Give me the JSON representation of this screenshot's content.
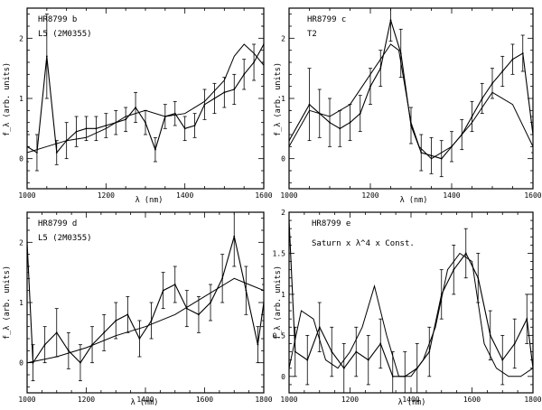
{
  "figure": {
    "panels": [
      {
        "id": "b",
        "title": "HR8799 b",
        "subtitle": "L5 (2M0355)",
        "xlabel": "λ (nm)",
        "ylabel": "f_λ (arb. units)"
      },
      {
        "id": "c",
        "title": "HR8799 c",
        "subtitle": "T2",
        "xlabel": "λ (nm)",
        "ylabel": "f_λ (arb. units)"
      },
      {
        "id": "d",
        "title": "HR8799 d",
        "subtitle": "L5 (2M0355)",
        "xlabel": "λ (nm)",
        "ylabel": "f_λ (arb. units)"
      },
      {
        "id": "e",
        "title": "HR8799 e",
        "subtitle": "Saturn x λ^4 x Const.",
        "xlabel": "λ (nm)",
        "ylabel": "f_λ (arb. units)"
      }
    ]
  },
  "chart_data": [
    {
      "type": "line",
      "title": "HR8799 b",
      "subtitle": "L5 (2M0355)",
      "xlabel": "λ (nm)",
      "ylabel": "f_λ (arb. units)",
      "xlim": [
        1000,
        1600
      ],
      "ylim": [
        -0.5,
        2.5
      ],
      "xticks": [
        1000,
        1200,
        1400,
        1600
      ],
      "yticks": [
        0,
        1,
        2
      ],
      "grid": false,
      "series": [
        {
          "style": "data_with_errorbars",
          "x": [
            1000,
            1025,
            1050,
            1075,
            1100,
            1125,
            1150,
            1175,
            1200,
            1225,
            1250,
            1275,
            1300,
            1325,
            1350,
            1375,
            1400,
            1425,
            1450,
            1475,
            1500,
            1525,
            1550,
            1575,
            1600
          ],
          "y": [
            0.2,
            0.1,
            1.7,
            0.1,
            0.3,
            0.45,
            0.5,
            0.5,
            0.55,
            0.6,
            0.65,
            0.85,
            0.6,
            0.15,
            0.7,
            0.75,
            0.5,
            0.55,
            0.9,
            1.0,
            1.1,
            1.15,
            1.4,
            1.6,
            1.9
          ],
          "err": [
            0.25,
            0.3,
            0.7,
            0.2,
            0.3,
            0.25,
            0.2,
            0.2,
            0.2,
            0.2,
            0.2,
            0.25,
            0.2,
            0.2,
            0.2,
            0.2,
            0.2,
            0.2,
            0.25,
            0.25,
            0.25,
            0.25,
            0.25,
            0.3,
            0.3
          ]
        },
        {
          "style": "model",
          "x": [
            1000,
            1050,
            1100,
            1150,
            1200,
            1250,
            1300,
            1350,
            1400,
            1450,
            1500,
            1525,
            1550,
            1575,
            1600
          ],
          "y": [
            0.1,
            0.2,
            0.3,
            0.35,
            0.5,
            0.7,
            0.8,
            0.7,
            0.75,
            0.95,
            1.3,
            1.7,
            1.9,
            1.75,
            1.55
          ]
        }
      ]
    },
    {
      "type": "line",
      "title": "HR8799 c",
      "subtitle": "T2",
      "xlabel": "λ (nm)",
      "ylabel": "f_λ (arb. units)",
      "xlim": [
        1000,
        1600
      ],
      "ylim": [
        -0.5,
        2.5
      ],
      "xticks": [
        1000,
        1200,
        1400,
        1600
      ],
      "yticks": [
        0,
        1,
        2
      ],
      "grid": false,
      "series": [
        {
          "style": "data_with_errorbars",
          "x": [
            1000,
            1050,
            1075,
            1100,
            1125,
            1150,
            1175,
            1200,
            1225,
            1250,
            1275,
            1300,
            1325,
            1350,
            1375,
            1400,
            1425,
            1450,
            1475,
            1500,
            1525,
            1550,
            1575,
            1600
          ],
          "y": [
            0.3,
            0.9,
            0.75,
            0.6,
            0.5,
            0.6,
            0.75,
            1.2,
            1.5,
            2.3,
            1.75,
            0.55,
            0.1,
            0.05,
            0.0,
            0.2,
            0.4,
            0.7,
            1.0,
            1.25,
            1.45,
            1.65,
            1.75,
            0.4
          ],
          "err": [
            0.5,
            0.6,
            0.4,
            0.4,
            0.3,
            0.3,
            0.3,
            0.3,
            0.3,
            0.35,
            0.4,
            0.3,
            0.3,
            0.3,
            0.3,
            0.25,
            0.25,
            0.25,
            0.25,
            0.25,
            0.25,
            0.25,
            0.3,
            0.3
          ]
        },
        {
          "style": "model",
          "x": [
            1000,
            1050,
            1100,
            1150,
            1200,
            1250,
            1270,
            1300,
            1320,
            1350,
            1400,
            1450,
            1500,
            1550,
            1600
          ],
          "y": [
            0.2,
            0.8,
            0.7,
            0.9,
            1.4,
            1.9,
            1.8,
            0.6,
            0.2,
            0.0,
            0.2,
            0.6,
            1.1,
            0.9,
            0.2
          ]
        }
      ]
    },
    {
      "type": "line",
      "title": "HR8799 d",
      "subtitle": "L5 (2M0355)",
      "xlabel": "λ (nm)",
      "ylabel": "f_λ (arb. units)",
      "xlim": [
        1000,
        1800
      ],
      "ylim": [
        -0.5,
        2.5
      ],
      "xticks": [
        1000,
        1200,
        1400,
        1600,
        1800
      ],
      "yticks": [
        0,
        1,
        2
      ],
      "grid": false,
      "series": [
        {
          "style": "data_with_errorbars",
          "x": [
            1000,
            1020,
            1060,
            1100,
            1140,
            1180,
            1220,
            1260,
            1300,
            1340,
            1380,
            1420,
            1460,
            1500,
            1540,
            1580,
            1620,
            1660,
            1700,
            1740,
            1780,
            1800
          ],
          "y": [
            2.0,
            0.0,
            0.3,
            0.5,
            0.2,
            0.0,
            0.3,
            0.5,
            0.7,
            0.8,
            0.4,
            0.7,
            1.2,
            1.3,
            0.9,
            0.8,
            1.0,
            1.4,
            2.1,
            1.2,
            0.3,
            1.0
          ],
          "err": [
            0.5,
            0.3,
            0.3,
            0.4,
            0.3,
            0.3,
            0.3,
            0.3,
            0.3,
            0.3,
            0.3,
            0.3,
            0.3,
            0.3,
            0.3,
            0.3,
            0.3,
            0.4,
            0.5,
            0.4,
            0.3,
            0.3
          ]
        },
        {
          "style": "model",
          "x": [
            1000,
            1100,
            1200,
            1300,
            1400,
            1500,
            1600,
            1700,
            1750,
            1800
          ],
          "y": [
            0.0,
            0.1,
            0.25,
            0.45,
            0.6,
            0.8,
            1.1,
            1.4,
            1.3,
            1.2
          ]
        }
      ]
    },
    {
      "type": "line",
      "title": "HR8799 e",
      "subtitle": "Saturn x λ^4 x Const.",
      "xlabel": "λ (nm)",
      "ylabel": "f_λ (arb. units)",
      "xlim": [
        1000,
        1800
      ],
      "ylim": [
        -0.2,
        2.0
      ],
      "xticks": [
        1000,
        1200,
        1400,
        1600,
        1800
      ],
      "yticks": [
        0,
        0.5,
        1,
        1.5,
        2
      ],
      "grid": false,
      "series": [
        {
          "style": "data_with_errorbars",
          "x": [
            1000,
            1020,
            1060,
            1100,
            1140,
            1180,
            1220,
            1260,
            1300,
            1340,
            1380,
            1420,
            1460,
            1500,
            1540,
            1580,
            1620,
            1660,
            1700,
            1740,
            1780,
            1800
          ],
          "y": [
            1.9,
            0.3,
            0.2,
            0.6,
            0.3,
            0.1,
            0.3,
            0.2,
            0.4,
            0.0,
            0.0,
            0.1,
            0.3,
            1.0,
            1.3,
            1.5,
            1.2,
            0.5,
            0.2,
            0.4,
            0.7,
            0.1
          ],
          "err": [
            0.2,
            0.3,
            0.3,
            0.3,
            0.3,
            0.3,
            0.3,
            0.3,
            0.3,
            0.3,
            0.3,
            0.3,
            0.3,
            0.3,
            0.3,
            0.3,
            0.3,
            0.3,
            0.3,
            0.3,
            0.3,
            0.3
          ]
        },
        {
          "style": "model",
          "x": [
            1000,
            1040,
            1080,
            1120,
            1160,
            1200,
            1240,
            1280,
            1320,
            1360,
            1400,
            1440,
            1480,
            1520,
            1560,
            1600,
            1640,
            1680,
            1720,
            1760,
            1800
          ],
          "y": [
            0.1,
            0.8,
            0.7,
            0.2,
            0.1,
            0.3,
            0.6,
            1.1,
            0.5,
            0.0,
            0.0,
            0.2,
            0.6,
            1.3,
            1.5,
            1.4,
            0.4,
            0.1,
            0.0,
            0.0,
            0.1
          ]
        }
      ]
    }
  ]
}
